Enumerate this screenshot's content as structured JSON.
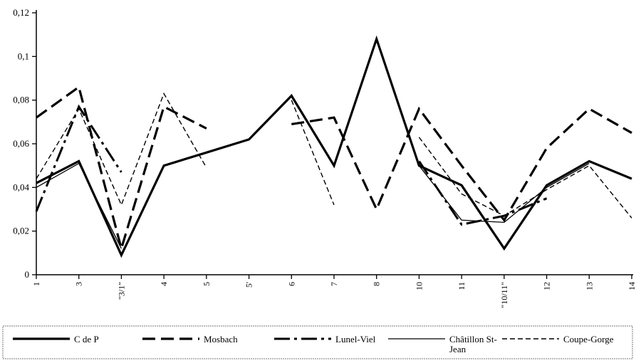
{
  "chart_data": {
    "type": "line",
    "title": "",
    "xlabel": "",
    "ylabel": "",
    "categories": [
      "1",
      "3",
      "\"3/1\"",
      "4",
      "5",
      "5'",
      "6",
      "7",
      "8",
      "10",
      "11",
      "\"10/11\"",
      "12",
      "13",
      "14"
    ],
    "ylim": [
      0,
      0.12
    ],
    "yticks": [
      0,
      0.02,
      0.04,
      0.06,
      0.08,
      0.1,
      0.12
    ],
    "ytick_labels": [
      "0",
      "0,02",
      "0,04",
      "0,06",
      "0,08",
      "0,1",
      "0,12"
    ],
    "grid": false,
    "legend_position": "bottom",
    "series": [
      {
        "name": "C de P",
        "style": "thick-solid",
        "color": "#000000",
        "values": [
          0.042,
          0.052,
          0.009,
          0.05,
          0.056,
          0.062,
          0.082,
          0.05,
          0.108,
          0.05,
          0.041,
          0.012,
          0.041,
          0.052,
          0.044
        ]
      },
      {
        "name": "Mosbach",
        "style": "long-dash",
        "color": "#000000",
        "values": [
          0.072,
          0.086,
          0.012,
          0.077,
          0.067,
          null,
          0.069,
          0.072,
          0.03,
          0.076,
          0.05,
          0.025,
          0.058,
          0.076,
          0.065
        ]
      },
      {
        "name": "Lunel-Viel",
        "style": "dash-dot",
        "color": "#000000",
        "values": [
          0.029,
          0.077,
          0.047,
          null,
          null,
          null,
          null,
          null,
          null,
          0.052,
          0.023,
          0.027,
          0.035,
          null,
          null
        ]
      },
      {
        "name": "Châtillon St-Jean",
        "style": "thin-solid",
        "color": "#000000",
        "values": [
          0.04,
          0.051,
          0.012,
          null,
          null,
          null,
          null,
          null,
          null,
          0.05,
          0.025,
          0.024,
          0.04,
          0.051,
          null
        ]
      },
      {
        "name": "Coupe-Gorge",
        "style": "thin-dash",
        "color": "#000000",
        "values": [
          0.044,
          0.076,
          0.032,
          0.083,
          0.049,
          null,
          0.08,
          0.032,
          null,
          0.063,
          0.037,
          0.027,
          0.039,
          0.05,
          0.026
        ]
      }
    ]
  },
  "legend": {
    "items": [
      {
        "label_lines": [
          "C de P"
        ]
      },
      {
        "label_lines": [
          "Mosbach"
        ]
      },
      {
        "label_lines": [
          "Lunel-Viel"
        ]
      },
      {
        "label_lines": [
          "Châtillon St-",
          "Jean"
        ]
      },
      {
        "label_lines": [
          "Coupe-Gorge"
        ]
      }
    ]
  }
}
